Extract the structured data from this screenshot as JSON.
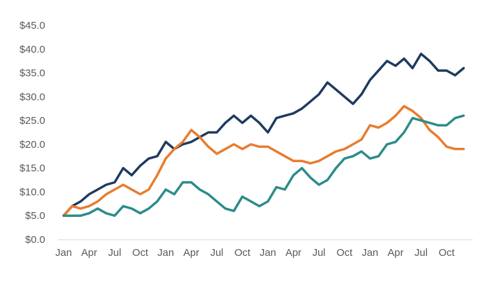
{
  "chart_data": {
    "type": "line",
    "title": "",
    "grid": false,
    "legend": "none",
    "x_frequency": "monthly",
    "months": [
      "Jan",
      "Feb",
      "Mar",
      "Apr",
      "May",
      "Jun",
      "Jul",
      "Aug",
      "Sep",
      "Oct",
      "Nov",
      "Dec",
      "Jan",
      "Feb",
      "Mar",
      "Apr",
      "May",
      "Jun",
      "Jul",
      "Aug",
      "Sep",
      "Oct",
      "Nov",
      "Dec",
      "Jan",
      "Feb",
      "Mar",
      "Apr",
      "May",
      "Jun",
      "Jul",
      "Aug",
      "Sep",
      "Oct",
      "Nov",
      "Dec",
      "Jan",
      "Feb",
      "Mar",
      "Apr",
      "May",
      "Jun",
      "Jul",
      "Aug",
      "Sep",
      "Oct",
      "Nov",
      "Dec"
    ],
    "x_tick_labels": [
      "Jan",
      "Apr",
      "Jul",
      "Oct",
      "Jan",
      "Apr",
      "Jul",
      "Oct",
      "Jan",
      "Apr",
      "Jul",
      "Oct",
      "Jan",
      "Apr",
      "Jul",
      "Oct"
    ],
    "x_tick_month_step": 3,
    "y_axis": {
      "min": 0,
      "max": 45,
      "step": 5,
      "tick_labels": [
        "$0.0",
        "$5.0",
        "$10.0",
        "$15.0",
        "$20.0",
        "$25.0",
        "$30.0",
        "$35.0",
        "$40.0",
        "$45.0"
      ]
    },
    "series": [
      {
        "name": "navy",
        "color": "#1f3a5f",
        "values": [
          5,
          7,
          8,
          9.5,
          10.5,
          11.5,
          12,
          15,
          13.5,
          15.5,
          17,
          17.5,
          20.5,
          19,
          20,
          20.5,
          21.5,
          22.5,
          22.5,
          24.5,
          26,
          24.5,
          26,
          24.5,
          22.5,
          25.5,
          26,
          26.5,
          27.5,
          29,
          30.5,
          33,
          31.5,
          30,
          28.5,
          30.5,
          33.5,
          35.5,
          37.5,
          36.5,
          38,
          36,
          39,
          37.5,
          35.5,
          35.5,
          34.5,
          36
        ]
      },
      {
        "name": "orange",
        "color": "#e87c2e",
        "values": [
          5,
          7,
          6.5,
          7,
          8,
          9.5,
          10.5,
          11.5,
          10.5,
          9.5,
          10.5,
          13.5,
          17,
          19,
          20.5,
          23,
          21.5,
          19.5,
          18,
          19,
          20,
          19,
          20,
          19.5,
          19.5,
          18.5,
          17.5,
          16.5,
          16.5,
          16,
          16.5,
          17.5,
          18.5,
          19,
          20,
          21,
          24,
          23.5,
          24.5,
          26,
          28,
          27,
          25.5,
          23,
          21.5,
          19.5,
          19,
          19
        ]
      },
      {
        "name": "teal",
        "color": "#2b8c8a",
        "values": [
          5,
          5,
          5,
          5.5,
          6.5,
          5.5,
          5,
          7,
          6.5,
          5.5,
          6.5,
          8,
          10.5,
          9.5,
          12,
          12,
          10.5,
          9.5,
          8,
          6.5,
          6,
          9,
          8,
          7,
          8,
          11,
          10.5,
          13.5,
          15,
          13,
          11.5,
          12.5,
          15,
          17,
          17.5,
          18.5,
          17,
          17.5,
          20,
          20.5,
          22.5,
          25.5,
          25,
          24.5,
          24,
          24,
          25.5,
          26
        ]
      }
    ],
    "colors": {
      "axis_line": "#d9d9d9",
      "label_text": "#595959",
      "background": "#ffffff"
    }
  }
}
